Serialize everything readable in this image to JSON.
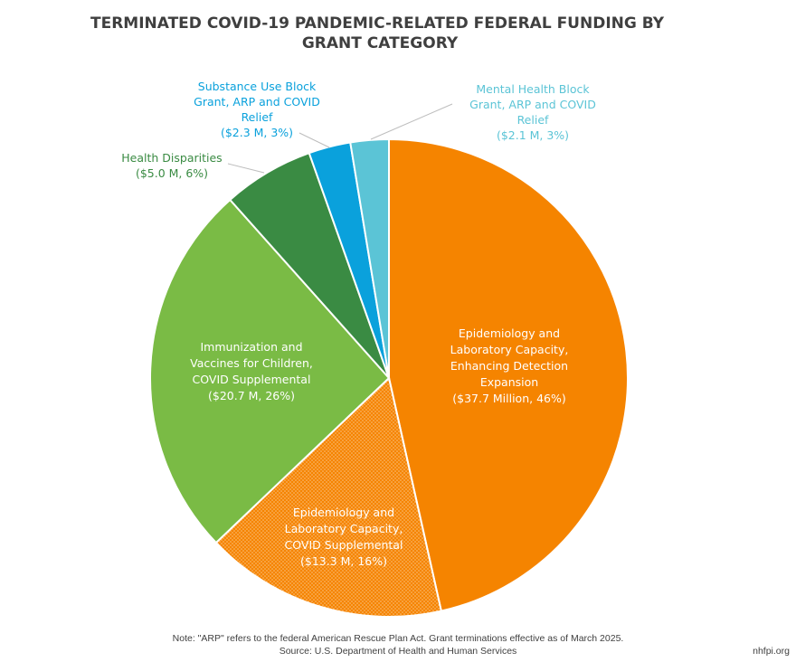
{
  "chart_data": {
    "type": "pie",
    "title": "TERMINATED COVID-19 PANDEMIC-RELATED FEDERAL FUNDING BY GRANT CATEGORY",
    "title_lines": [
      "TERMINATED COVID-19 PANDEMIC-RELATED FEDERAL FUNDING BY",
      "GRANT CATEGORY"
    ],
    "unit": "$ Millions",
    "slices": [
      {
        "name": "Epidemiology and Laboratory Capacity, Enhancing Detection Expansion",
        "value": 37.7,
        "percent": 46,
        "color": "#F58400",
        "pattern": "solid",
        "label_lines": [
          "Epidemiology and",
          "Laboratory Capacity,",
          "Enhancing Detection",
          "Expansion",
          "($37.7 Million, 46%)"
        ]
      },
      {
        "name": "Epidemiology and Laboratory Capacity, COVID Supplemental",
        "value": 13.3,
        "percent": 16,
        "color": "#F58400",
        "pattern": "dotted",
        "label_lines": [
          "Epidemiology and",
          "Laboratory Capacity,",
          "COVID Supplemental",
          "($13.3 M, 16%)"
        ]
      },
      {
        "name": "Immunization and Vaccines for Children, COVID Supplemental",
        "value": 20.7,
        "percent": 26,
        "color": "#7ABB45",
        "pattern": "solid",
        "label_lines": [
          "Immunization and",
          "Vaccines for Children,",
          "COVID Supplemental",
          "($20.7 M, 26%)"
        ]
      },
      {
        "name": "Health Disparities",
        "value": 5.0,
        "percent": 6,
        "color": "#3A8B43",
        "pattern": "solid",
        "label_lines": [
          "Health Disparities",
          "($5.0 M, 6%)"
        ]
      },
      {
        "name": "Substance Use Block Grant, ARP and COVID Relief",
        "value": 2.3,
        "percent": 3,
        "color": "#0AA1DC",
        "pattern": "solid",
        "label_lines": [
          "Substance Use Block",
          "Grant, ARP and COVID",
          "Relief",
          "($2.3 M, 3%)"
        ]
      },
      {
        "name": "Mental Health Block Grant, ARP and COVID Relief",
        "value": 2.1,
        "percent": 3,
        "color": "#5BC4D6",
        "pattern": "solid",
        "label_lines": [
          "Mental Health Block",
          "Grant, ARP and COVID",
          "Relief",
          "($2.1 M, 3%)"
        ]
      }
    ]
  },
  "footer": {
    "note": "Note: \"ARP\" refers to the federal American Rescue Plan Act. Grant terminations effective as of March 2025.",
    "source": "Source: U.S. Department of Health and Human Services",
    "brand": "nhfpi.org"
  }
}
